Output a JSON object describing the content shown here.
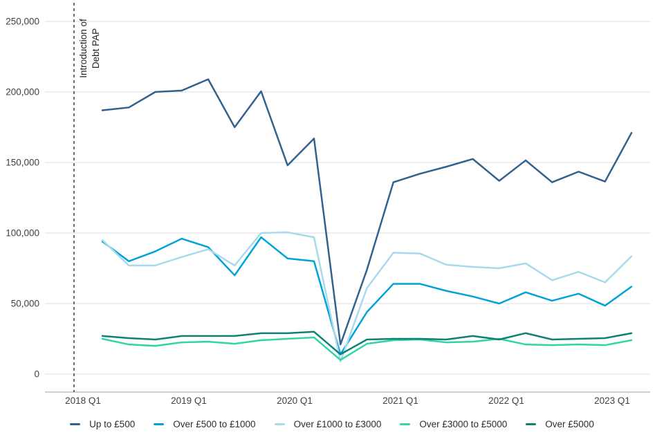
{
  "chart_data": {
    "type": "line",
    "title": "",
    "annotation": {
      "line1": "Introduction of",
      "line2": "Debt PAP"
    },
    "categories": [
      "2018 Q1",
      "2018 Q2",
      "2018 Q3",
      "2018 Q4",
      "2019 Q1",
      "2019 Q2",
      "2019 Q3",
      "2019 Q4",
      "2020 Q1",
      "2020 Q2",
      "2020 Q3",
      "2020 Q4",
      "2021 Q1",
      "2021 Q2",
      "2021 Q3",
      "2021 Q4",
      "2022 Q1",
      "2022 Q2",
      "2022 Q3",
      "2022 Q4",
      "2023 Q1"
    ],
    "x_tick_labels": [
      "2018 Q1",
      "2019 Q1",
      "2020 Q1",
      "2021 Q1",
      "2022 Q1",
      "2023 Q1"
    ],
    "x_tick_indices": [
      0,
      4,
      8,
      12,
      16,
      20
    ],
    "yticks": [
      0,
      50000,
      100000,
      150000,
      200000,
      250000
    ],
    "ytick_labels": [
      "0",
      "50,000",
      "100,000",
      "150,000",
      "200,000",
      "250,000"
    ],
    "ylim": [
      0,
      250000
    ],
    "grid": "horizontal-only",
    "legend_position": "bottom",
    "colors": {
      "grid": "#DCDCDC",
      "axis": "#B3B3B3",
      "tick_text": "#414141",
      "annotation_dash": "#3A3A3A"
    },
    "series": [
      {
        "name": "Up to £500",
        "color": "#30618F",
        "values": [
          187000,
          189000,
          200000,
          201000,
          209000,
          175000,
          200500,
          148000,
          167000,
          21000,
          74000,
          136000,
          142000,
          147000,
          152500,
          137000,
          151500,
          136000,
          143500,
          136500,
          171000
        ]
      },
      {
        "name": "Over £500 to £1000",
        "color": "#00A3D7",
        "values": [
          94000,
          80000,
          87000,
          96000,
          90000,
          70000,
          97000,
          82000,
          80000,
          14000,
          44000,
          64000,
          64000,
          59000,
          55000,
          50000,
          58000,
          52000,
          57000,
          48500,
          62000
        ]
      },
      {
        "name": "Over £1000 to £3000",
        "color": "#A8DAEE",
        "values": [
          95000,
          77000,
          77000,
          83000,
          88500,
          77000,
          100000,
          100500,
          97000,
          9000,
          61000,
          86000,
          85500,
          77500,
          76000,
          75000,
          78500,
          66500,
          72500,
          65000,
          83500
        ]
      },
      {
        "name": "Over £3000 to £5000",
        "color": "#2FD6A4",
        "values": [
          25000,
          21000,
          20000,
          22500,
          23000,
          21500,
          24000,
          25000,
          26000,
          10000,
          21500,
          24000,
          24500,
          22500,
          23000,
          25000,
          21000,
          20500,
          21000,
          20500,
          24000
        ]
      },
      {
        "name": "Over £5000",
        "color": "#0F8074",
        "values": [
          27000,
          25500,
          24500,
          27000,
          27000,
          27000,
          29000,
          29000,
          30000,
          14000,
          24500,
          25000,
          25000,
          24500,
          27000,
          24500,
          29000,
          24500,
          25000,
          25500,
          29000
        ]
      }
    ]
  }
}
